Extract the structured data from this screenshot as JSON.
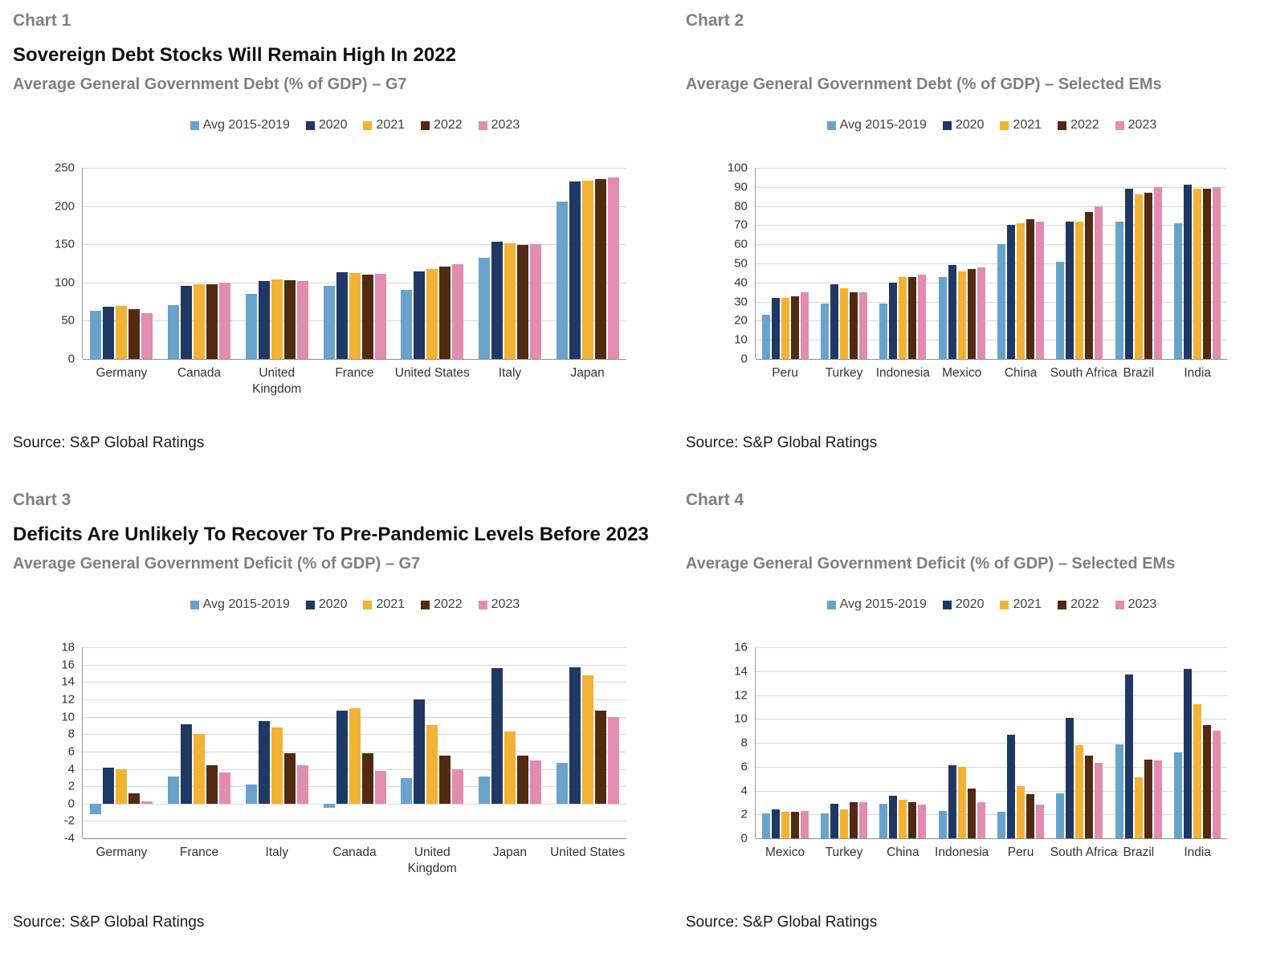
{
  "chart_data": [
    {
      "type": "bar",
      "label": "Chart 1",
      "title": "Sovereign Debt Stocks Will Remain High In 2022",
      "subtitle": "Average General Government Debt (% of GDP) – G7",
      "source": "Source: S&P Global Ratings",
      "legend_position": "top",
      "grid": true,
      "wrap_labels": true,
      "ylim": [
        0,
        250
      ],
      "ytick_step": 50,
      "categories": [
        "Germany",
        "Canada",
        "United Kingdom",
        "France",
        "United States",
        "Italy",
        "Japan"
      ],
      "series": [
        {
          "name": "Avg 2015-2019",
          "color": "#69A3CC",
          "values": [
            63,
            70,
            85,
            96,
            90,
            132,
            206
          ]
        },
        {
          "name": "2020",
          "color": "#1F3864",
          "values": [
            68,
            96,
            102,
            113,
            115,
            153,
            232
          ]
        },
        {
          "name": "2021",
          "color": "#F2B234",
          "values": [
            69,
            98,
            104,
            112,
            118,
            151,
            233
          ]
        },
        {
          "name": "2022",
          "color": "#522A12",
          "values": [
            65,
            98,
            103,
            110,
            121,
            149,
            235
          ]
        },
        {
          "name": "2023",
          "color": "#E28CB0",
          "values": [
            60,
            100,
            102,
            111,
            124,
            150,
            237
          ]
        }
      ]
    },
    {
      "type": "bar",
      "label": "Chart 2",
      "subtitle": "Average General Government Debt (% of GDP) – Selected EMs",
      "source": "Source: S&P Global Ratings",
      "legend_position": "top",
      "grid": true,
      "wrap_labels": false,
      "ylim": [
        0,
        100
      ],
      "ytick_step": 10,
      "categories": [
        "Peru",
        "Turkey",
        "Indonesia",
        "Mexico",
        "China",
        "South Africa",
        "Brazil",
        "India"
      ],
      "series": [
        {
          "name": "Avg 2015-2019",
          "color": "#69A3CC",
          "values": [
            23,
            29,
            29,
            43,
            60,
            51,
            72,
            71
          ]
        },
        {
          "name": "2020",
          "color": "#1F3864",
          "values": [
            32,
            39,
            40,
            49,
            70,
            72,
            89,
            91
          ]
        },
        {
          "name": "2021",
          "color": "#F2B234",
          "values": [
            32,
            37,
            43,
            46,
            71,
            72,
            86,
            89
          ]
        },
        {
          "name": "2022",
          "color": "#522A12",
          "values": [
            33,
            35,
            43,
            47,
            73,
            77,
            87,
            89
          ]
        },
        {
          "name": "2023",
          "color": "#E28CB0",
          "values": [
            35,
            35,
            44,
            48,
            72,
            80,
            90,
            90
          ]
        }
      ]
    },
    {
      "type": "bar",
      "label": "Chart 3",
      "title": "Deficits Are Unlikely To Recover To Pre-Pandemic Levels Before 2023",
      "subtitle": "Average General Government Deficit (% of GDP) – G7",
      "source": "Source: S&P Global Ratings",
      "legend_position": "top",
      "grid": true,
      "wrap_labels": true,
      "ylim": [
        -4,
        18
      ],
      "ytick_step": 2,
      "categories": [
        "Germany",
        "France",
        "Italy",
        "Canada",
        "United Kingdom",
        "Japan",
        "United States"
      ],
      "series": [
        {
          "name": "Avg 2015-2019",
          "color": "#69A3CC",
          "values": [
            -1.2,
            3.1,
            2.2,
            -0.5,
            2.9,
            3.1,
            4.7
          ]
        },
        {
          "name": "2020",
          "color": "#1F3864",
          "values": [
            4.1,
            9.1,
            9.5,
            10.7,
            12.0,
            15.6,
            15.7
          ]
        },
        {
          "name": "2021",
          "color": "#F2B234",
          "values": [
            4.0,
            8.0,
            8.8,
            11.0,
            9.0,
            8.3,
            14.8
          ]
        },
        {
          "name": "2022",
          "color": "#522A12",
          "values": [
            1.2,
            4.4,
            5.8,
            5.8,
            5.5,
            5.5,
            10.7
          ]
        },
        {
          "name": "2023",
          "color": "#E28CB0",
          "values": [
            0.3,
            3.6,
            4.4,
            3.8,
            4.0,
            5.0,
            10.0
          ]
        }
      ]
    },
    {
      "type": "bar",
      "label": "Chart 4",
      "subtitle": "Average General Government Deficit (% of GDP) – Selected EMs",
      "source": "Source: S&P Global Ratings",
      "legend_position": "top",
      "grid": true,
      "wrap_labels": false,
      "ylim": [
        0,
        16
      ],
      "ytick_step": 2,
      "categories": [
        "Mexico",
        "Turkey",
        "China",
        "Indonesia",
        "Peru",
        "South Africa",
        "Brazil",
        "India"
      ],
      "series": [
        {
          "name": "Avg 2015-2019",
          "color": "#69A3CC",
          "values": [
            2.1,
            2.1,
            2.9,
            2.3,
            2.2,
            3.8,
            7.9,
            7.2
          ]
        },
        {
          "name": "2020",
          "color": "#1F3864",
          "values": [
            2.4,
            2.9,
            3.6,
            6.1,
            8.7,
            10.1,
            13.7,
            14.2
          ]
        },
        {
          "name": "2021",
          "color": "#F2B234",
          "values": [
            2.2,
            2.4,
            3.2,
            6.0,
            4.4,
            7.8,
            5.1,
            11.2
          ]
        },
        {
          "name": "2022",
          "color": "#522A12",
          "values": [
            2.2,
            3.0,
            3.0,
            4.2,
            3.7,
            6.9,
            6.6,
            9.5
          ]
        },
        {
          "name": "2023",
          "color": "#E28CB0",
          "values": [
            2.3,
            3.0,
            2.8,
            3.0,
            2.8,
            6.3,
            6.5,
            9.0
          ]
        }
      ]
    }
  ],
  "palette": {
    "avg_2015_2019": "#69A3CC",
    "y2020": "#1F3864",
    "y2021": "#F2B234",
    "y2022": "#522A12",
    "y2023": "#E28CB0",
    "title_gray": "#7F7F7F",
    "gridline": "#D9D9D9"
  }
}
